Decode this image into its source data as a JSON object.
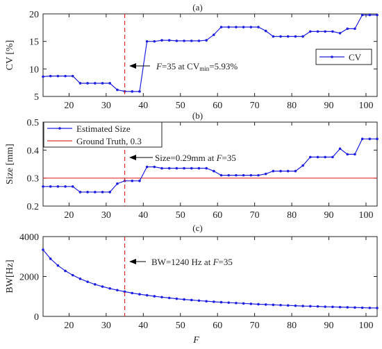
{
  "colors": {
    "series": "#1f1fe0",
    "truth": "#e03030",
    "marker_line": "#d62828",
    "arrow": "#000000"
  },
  "x_axis_title": "F",
  "chart_data": [
    {
      "type": "line",
      "panel_label": "(a)",
      "ylabel": "CV [%]",
      "xlim": [
        13,
        103
      ],
      "ylim": [
        5,
        20
      ],
      "xticks": [
        20,
        30,
        40,
        50,
        60,
        70,
        80,
        90,
        100
      ],
      "yticks": [
        5,
        10,
        15,
        20
      ],
      "vline_x": 35,
      "series": [
        {
          "name": "CV",
          "x": [
            13,
            15,
            17,
            19,
            21,
            23,
            25,
            27,
            29,
            31,
            33,
            35,
            37,
            39,
            41,
            43,
            45,
            47,
            49,
            51,
            53,
            55,
            57,
            59,
            61,
            63,
            65,
            67,
            69,
            71,
            73,
            75,
            77,
            79,
            81,
            83,
            85,
            87,
            89,
            91,
            93,
            95,
            97,
            99,
            101,
            103
          ],
          "y": [
            8.6,
            8.7,
            8.7,
            8.7,
            8.7,
            7.4,
            7.4,
            7.4,
            7.4,
            7.4,
            6.2,
            5.93,
            5.9,
            5.9,
            15.0,
            15.0,
            15.2,
            15.2,
            15.1,
            15.1,
            15.1,
            15.1,
            15.2,
            16.2,
            17.6,
            17.6,
            17.6,
            17.6,
            17.6,
            17.6,
            16.9,
            15.9,
            15.9,
            15.9,
            15.9,
            15.9,
            16.8,
            16.8,
            16.8,
            16.8,
            16.5,
            17.3,
            17.3,
            19.8,
            19.8,
            19.8
          ]
        }
      ],
      "legend": {
        "position": "top-right",
        "entries": [
          "CV"
        ]
      },
      "annotation": {
        "prefix": "F",
        "text": "=35 at CV",
        "sub": "min",
        "suffix": "=5.93%"
      }
    },
    {
      "type": "line",
      "panel_label": "(b)",
      "ylabel": "Size [mm]",
      "xlim": [
        13,
        103
      ],
      "ylim": [
        0.2,
        0.5
      ],
      "xticks": [
        20,
        30,
        40,
        50,
        60,
        70,
        80,
        90,
        100
      ],
      "yticks": [
        0.2,
        0.3,
        0.4,
        0.5
      ],
      "ytick_labels": [
        "0.2",
        "0.3",
        "0.4",
        "0.5"
      ],
      "vline_x": 35,
      "hline_y": 0.3,
      "series": [
        {
          "name": "Estimated Size",
          "x": [
            13,
            15,
            17,
            19,
            21,
            23,
            25,
            27,
            29,
            31,
            33,
            35,
            37,
            39,
            41,
            43,
            45,
            47,
            49,
            51,
            53,
            55,
            57,
            59,
            61,
            63,
            65,
            67,
            69,
            71,
            73,
            75,
            77,
            79,
            81,
            83,
            85,
            87,
            89,
            91,
            93,
            95,
            97,
            99,
            101,
            103
          ],
          "y": [
            0.27,
            0.27,
            0.27,
            0.27,
            0.27,
            0.25,
            0.25,
            0.25,
            0.25,
            0.25,
            0.28,
            0.29,
            0.29,
            0.29,
            0.34,
            0.34,
            0.335,
            0.335,
            0.335,
            0.335,
            0.335,
            0.335,
            0.335,
            0.325,
            0.31,
            0.31,
            0.31,
            0.31,
            0.31,
            0.31,
            0.315,
            0.325,
            0.325,
            0.325,
            0.325,
            0.345,
            0.375,
            0.375,
            0.375,
            0.375,
            0.405,
            0.385,
            0.385,
            0.44,
            0.44,
            0.44
          ]
        },
        {
          "name": "Ground Truth, 0.3",
          "y_constant": 0.3
        }
      ],
      "legend": {
        "position": "top-left",
        "entries": [
          "Estimated Size",
          "Ground Truth, 0.3"
        ]
      },
      "annotation": {
        "text": "Size=0.29mm at ",
        "var": "F",
        "suffix": "=35"
      }
    },
    {
      "type": "line",
      "panel_label": "(c)",
      "ylabel": "BW[Hz]",
      "xlim": [
        13,
        103
      ],
      "ylim": [
        0,
        4000
      ],
      "xticks": [
        20,
        30,
        40,
        50,
        60,
        70,
        80,
        90,
        100
      ],
      "yticks": [
        0,
        2000,
        4000
      ],
      "vline_x": 35,
      "series": [
        {
          "name": "BW",
          "x": [
            13,
            15,
            17,
            19,
            21,
            23,
            25,
            27,
            29,
            31,
            33,
            35,
            37,
            39,
            41,
            43,
            45,
            47,
            49,
            51,
            53,
            55,
            57,
            59,
            61,
            63,
            65,
            67,
            69,
            71,
            73,
            75,
            77,
            79,
            81,
            83,
            85,
            87,
            89,
            91,
            93,
            95,
            97,
            99,
            101,
            103
          ],
          "y": [
            3340,
            2890,
            2550,
            2280,
            2065,
            1885,
            1735,
            1605,
            1495,
            1400,
            1315,
            1240,
            1170,
            1110,
            1060,
            1010,
            965,
            925,
            885,
            850,
            820,
            790,
            760,
            735,
            710,
            690,
            670,
            650,
            630,
            610,
            595,
            580,
            565,
            550,
            535,
            520,
            510,
            500,
            485,
            475,
            465,
            455,
            445,
            435,
            425,
            420
          ]
        }
      ],
      "annotation": {
        "text": "BW=1240 Hz at ",
        "var": "F",
        "suffix": "=35"
      }
    }
  ]
}
